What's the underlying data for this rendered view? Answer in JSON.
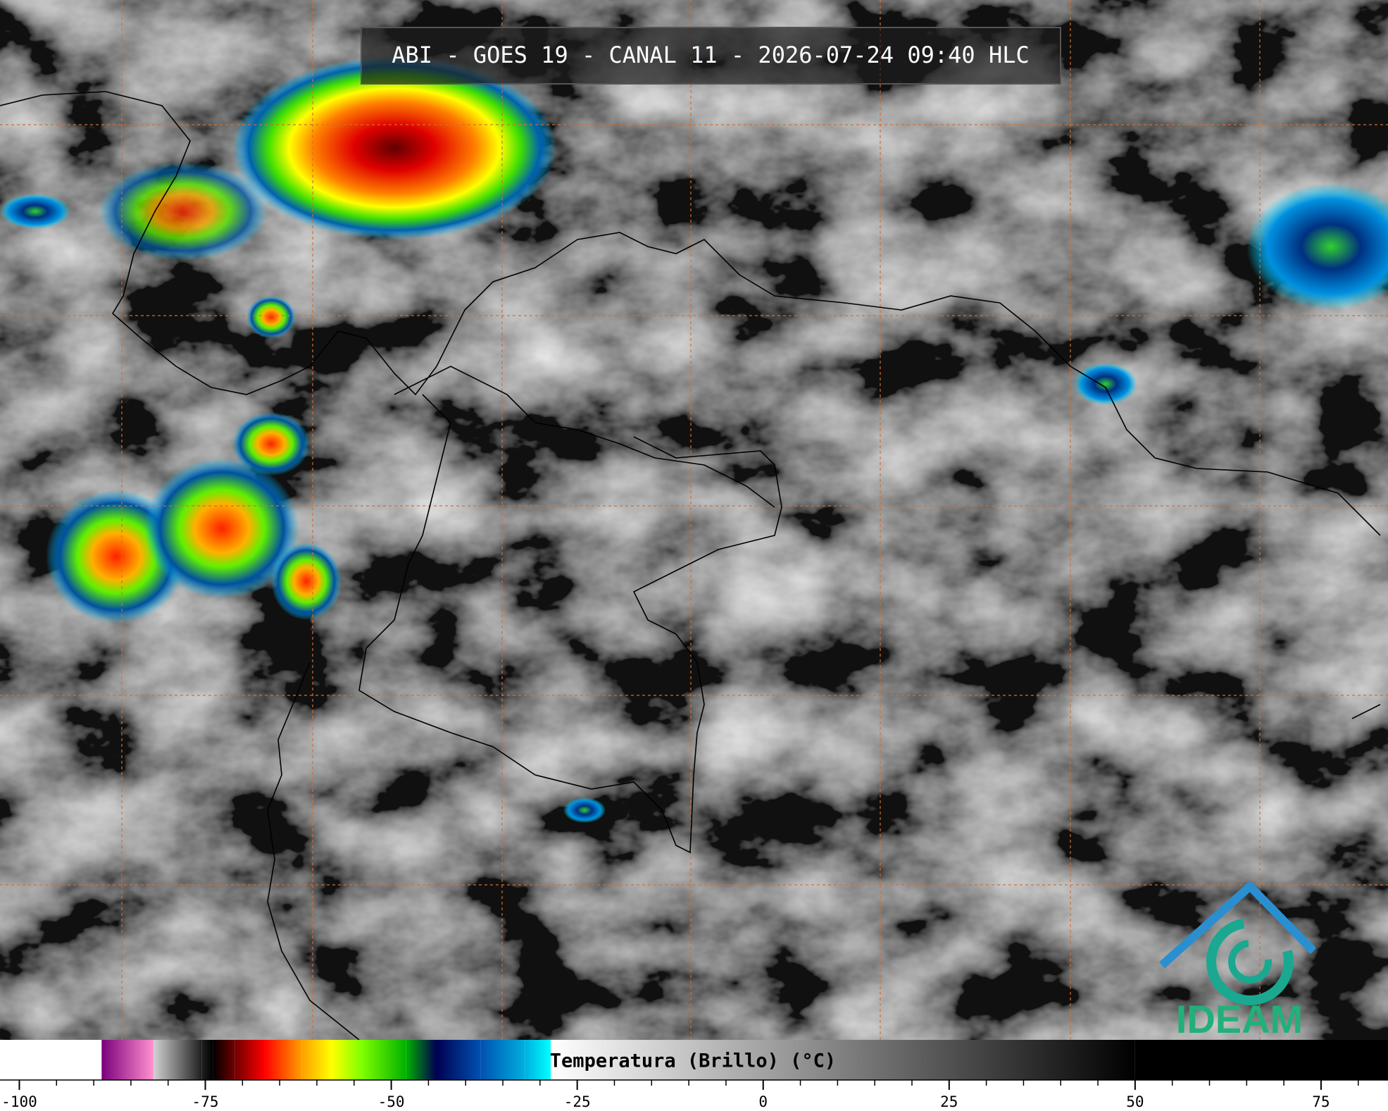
{
  "title": "ABI - GOES 19 - CANAL 11 - 2026-07-24 09:40 HLC",
  "colorbar": {
    "label": "Temperatura (Brillo) (°C)",
    "lim": [
      -102.6,
      84
    ],
    "ticks": [
      -100,
      -75,
      -50,
      -25,
      0,
      25,
      50,
      75
    ],
    "minor_ticks": [
      -95,
      -90,
      -85,
      -80,
      -70,
      -65,
      -60,
      -55,
      -45,
      -40,
      -35,
      -30,
      -20,
      -15,
      -10,
      -5,
      5,
      10,
      15,
      20,
      30,
      35,
      40,
      45,
      55,
      60,
      65,
      70,
      80
    ],
    "colormap": [
      {
        "value": -102.6,
        "color": "#ffffff"
      },
      {
        "value": -89,
        "color": "#ffffff"
      },
      {
        "value": -88.9,
        "color": "#7a007a"
      },
      {
        "value": -82,
        "color": "#ff90d0"
      },
      {
        "value": -81.9,
        "color": "#d0d0d0"
      },
      {
        "value": -75.5,
        "color": "#202020"
      },
      {
        "value": -74,
        "color": "#000000"
      },
      {
        "value": -71,
        "color": "#700000"
      },
      {
        "value": -67,
        "color": "#ff0000"
      },
      {
        "value": -62,
        "color": "#ffa000"
      },
      {
        "value": -58,
        "color": "#ffff00"
      },
      {
        "value": -54,
        "color": "#80ff00"
      },
      {
        "value": -48,
        "color": "#00b000"
      },
      {
        "value": -44,
        "color": "#000050"
      },
      {
        "value": -38,
        "color": "#0050b0"
      },
      {
        "value": -32,
        "color": "#00b0e0"
      },
      {
        "value": -28.6,
        "color": "#00ffff"
      },
      {
        "value": -28.5,
        "color": "#ffffff"
      },
      {
        "value": 50,
        "color": "#000000"
      },
      {
        "value": 84,
        "color": "#000000"
      }
    ]
  },
  "logo": {
    "text": "IDEAM"
  }
}
